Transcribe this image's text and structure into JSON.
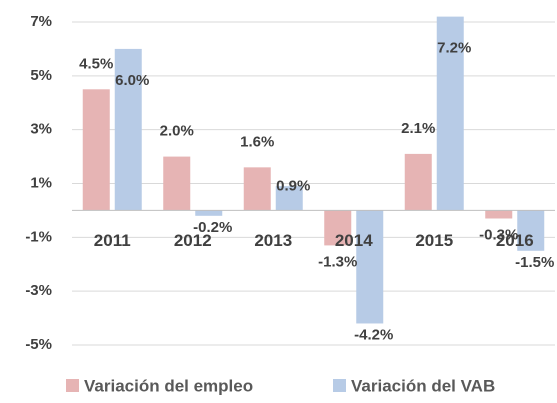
{
  "chart_data": {
    "type": "bar",
    "categories": [
      "2011",
      "2012",
      "2013",
      "2014",
      "2015",
      "2016"
    ],
    "series": [
      {
        "name": "Variación del empleo",
        "color": "#e6b4b4",
        "values": [
          4.5,
          2.0,
          1.6,
          -1.3,
          2.1,
          -0.3
        ],
        "value_labels": [
          "4.5%",
          "2.0%",
          "1.6%",
          "-1.3%",
          "2.1%",
          "-0.3%"
        ]
      },
      {
        "name": "Variación del VAB",
        "color": "#b7cbe6",
        "values": [
          6.0,
          -0.2,
          0.9,
          -4.2,
          7.2,
          -1.5
        ],
        "value_labels": [
          "6.0%",
          "-0.2%",
          "0.9%",
          "-4.2%",
          "7.2%",
          "-1.5%"
        ]
      }
    ],
    "ylim": [
      -5,
      7
    ],
    "yticks": [
      {
        "value": 7,
        "label": "7%"
      },
      {
        "value": 5,
        "label": "5%"
      },
      {
        "value": 3,
        "label": "3%"
      },
      {
        "value": 1,
        "label": "1%"
      },
      {
        "value": -1,
        "label": "-1%"
      },
      {
        "value": -3,
        "label": "-3%"
      },
      {
        "value": -5,
        "label": "-5%"
      }
    ],
    "grid": true,
    "legend": "bottom"
  }
}
